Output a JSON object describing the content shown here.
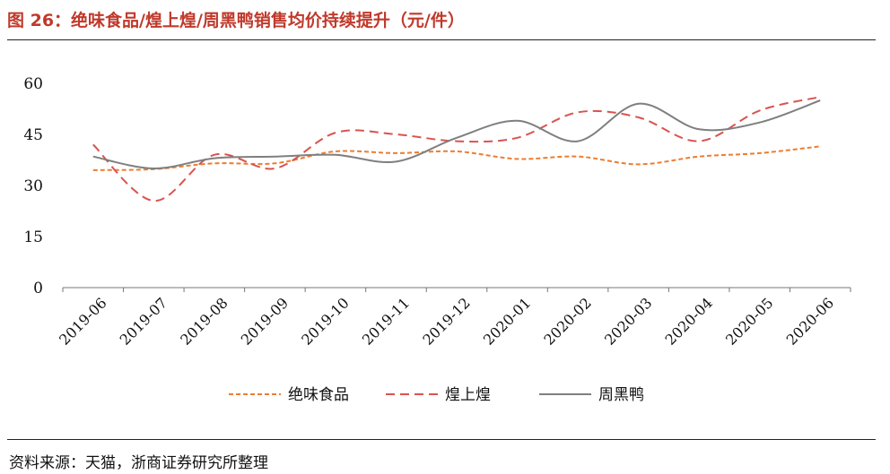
{
  "figure": {
    "title": "图 26：绝味食品/煌上煌/周黑鸭销售均价持续提升（元/件）",
    "source": "资料来源：天猫，浙商证券研究所整理"
  },
  "colors": {
    "title": "#c0392b",
    "series": [
      "#ed7d31",
      "#d9534f",
      "#7f7f7f"
    ]
  },
  "chart_data": {
    "type": "line",
    "title": "",
    "xlabel": "",
    "ylabel": "",
    "ylim": [
      0,
      60
    ],
    "yticks": [
      "0",
      "15",
      "30",
      "45",
      "60"
    ],
    "grid": false,
    "legend": "bottom",
    "categories": [
      "2019-06",
      "2019-07",
      "2019-08",
      "2019-09",
      "2019-10",
      "2019-11",
      "2019-12",
      "2020-01",
      "2020-02",
      "2020-03",
      "2020-04",
      "2020-05",
      "2020-06"
    ],
    "series": [
      {
        "name": "绝味食品",
        "style": "short-dash",
        "values": [
          34.5,
          34.8,
          36.5,
          36.5,
          40.0,
          39.5,
          40.0,
          37.8,
          38.5,
          36.2,
          38.5,
          39.5,
          41.5
        ]
      },
      {
        "name": "煌上煌",
        "style": "long-dash",
        "values": [
          42.0,
          25.5,
          39.0,
          35.0,
          45.5,
          45.0,
          43.0,
          44.0,
          51.5,
          50.0,
          43.0,
          52.0,
          56.0
        ]
      },
      {
        "name": "周黑鸭",
        "style": "solid",
        "values": [
          38.5,
          35.0,
          38.0,
          38.5,
          39.0,
          37.0,
          44.0,
          49.0,
          43.0,
          54.0,
          46.5,
          48.5,
          55.0
        ]
      }
    ]
  }
}
